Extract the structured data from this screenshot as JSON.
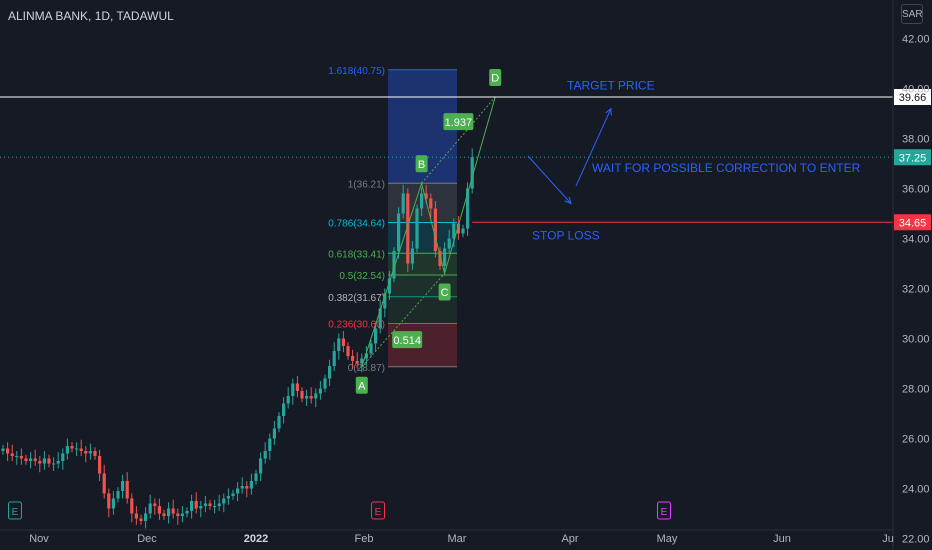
{
  "header": {
    "title": "ALINMA BANK, 1D, TADAWUL",
    "currency": "SAR"
  },
  "colors": {
    "background": "#161a25",
    "up": "#26a69a",
    "down": "#ef5350",
    "pattern": "#4caf50",
    "annotation_text": "#2962ff",
    "horizontal_white": "#ffffff",
    "horizontal_red": "#f23645",
    "axis_text": "#b2b5be"
  },
  "chart_data": {
    "type": "candlestick",
    "y_axis": {
      "ticks": [
        "42.00",
        "40.00",
        "38.00",
        "36.00",
        "34.00",
        "32.00",
        "30.00",
        "28.00",
        "26.00",
        "24.00",
        "22.00"
      ],
      "ylim": [
        22,
        43.5
      ]
    },
    "x_axis": {
      "ticks": [
        "Nov",
        "Dec",
        "2022",
        "Feb",
        "Mar",
        "Apr",
        "May",
        "Jun",
        "Ju"
      ]
    },
    "closes": [
      25.6,
      25.4,
      25.3,
      25.3,
      25.2,
      25.1,
      25.2,
      25.1,
      25.0,
      25.2,
      25.0,
      25.0,
      25.1,
      25.4,
      25.7,
      25.6,
      25.6,
      25.5,
      25.4,
      25.5,
      25.3,
      24.6,
      23.8,
      23.2,
      23.6,
      23.9,
      24.3,
      23.6,
      23.0,
      22.8,
      22.7,
      23.0,
      23.4,
      23.3,
      23.0,
      22.9,
      23.2,
      23.0,
      22.9,
      23.0,
      23.1,
      23.5,
      23.2,
      23.3,
      23.4,
      23.3,
      23.3,
      23.4,
      23.6,
      23.7,
      23.8,
      24.0,
      24.1,
      24.0,
      24.3,
      24.6,
      25.2,
      25.5,
      26.0,
      26.4,
      26.9,
      27.4,
      27.7,
      28.2,
      27.9,
      27.6,
      27.7,
      27.6,
      27.8,
      28.0,
      28.4,
      28.9,
      29.5,
      30.0,
      29.7,
      29.3,
      29.1,
      29.0,
      29.2,
      29.4,
      29.8,
      30.4,
      31.2,
      31.8,
      32.4,
      33.5,
      35.0,
      35.8,
      33.0,
      33.6,
      35.2,
      35.8,
      35.6,
      35.2,
      33.5,
      32.9,
      33.6,
      34.0,
      34.6,
      34.2,
      34.4,
      36.0,
      37.25
    ],
    "fibonacci": [
      {
        "label": "1.618(40.75)",
        "value": 40.75
      },
      {
        "label": "1(36.21)",
        "value": 36.21
      },
      {
        "label": "0.786(34.64)",
        "value": 34.64
      },
      {
        "label": "0.618(33.41)",
        "value": 33.41
      },
      {
        "label": "0.5(32.54)",
        "value": 32.54
      },
      {
        "label": "0.382(31.67)",
        "value": 31.67
      },
      {
        "label": "0.236(30.60)",
        "value": 30.6
      },
      {
        "label": "0(28.87)",
        "value": 28.87
      }
    ],
    "abcd_pattern": {
      "points": [
        {
          "label": "A",
          "x_index": 78,
          "value": 28.87
        },
        {
          "label": "B",
          "x_index": 91,
          "value": 36.21
        },
        {
          "label": "C",
          "x_index": 96,
          "value": 32.6
        },
        {
          "label": "D",
          "x_index": 107,
          "value": 39.66
        }
      ],
      "ratios": [
        "0.514",
        "1.937"
      ]
    },
    "horizontal_lines": [
      {
        "value": 39.66,
        "label": "39.66"
      },
      {
        "value": 34.65,
        "label": "34.65"
      }
    ],
    "last_price": {
      "value": 37.25,
      "label": "37.25"
    },
    "annotations": [
      {
        "text": "TARGET PRICE"
      },
      {
        "text": "WAIT FOR POSSIBLE CORRECTION TO ENTER"
      },
      {
        "text": "STOP LOSS"
      }
    ],
    "event_markers": [
      "E",
      "E",
      "E"
    ]
  }
}
